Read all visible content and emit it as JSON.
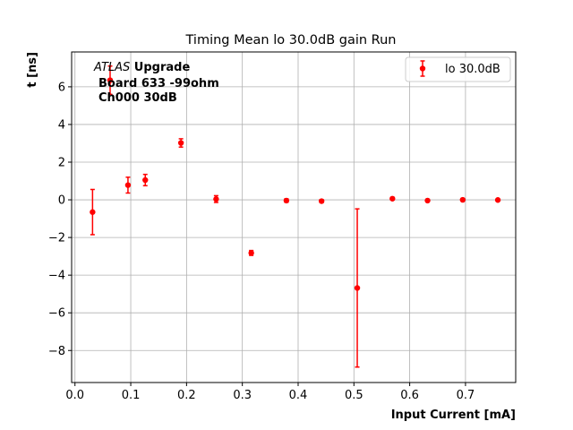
{
  "chart_data": {
    "type": "scatter",
    "title": "Timing Mean lo 30.0dB gain Run",
    "xlabel": "Input Current [mA]",
    "ylabel": "t [ns]",
    "xlim": [
      -0.006,
      0.79
    ],
    "ylim": [
      -9.7,
      7.85
    ],
    "xticks": [
      0.0,
      0.1,
      0.2,
      0.3,
      0.4,
      0.5,
      0.6,
      0.7
    ],
    "xtick_labels": [
      "0.0",
      "0.1",
      "0.2",
      "0.3",
      "0.4",
      "0.5",
      "0.6",
      "0.7"
    ],
    "yticks": [
      -8,
      -6,
      -4,
      -2,
      0,
      2,
      4,
      6
    ],
    "ytick_labels": [
      "−8",
      "−6",
      "−4",
      "−2",
      "0",
      "2",
      "4",
      "6"
    ],
    "grid": true,
    "legend_position": "top-right",
    "annotation": {
      "line1_italic": "ATLAS",
      "line1_bold": " Upgrade",
      "line2": "Board 633 -99ohm",
      "line3": "Ch000 30dB"
    },
    "series": [
      {
        "name": "lo 30.0dB",
        "color": "#ff0000",
        "marker": "circle",
        "x": [
          0.0315,
          0.063,
          0.095,
          0.126,
          0.19,
          0.253,
          0.316,
          0.379,
          0.442,
          0.506,
          0.569,
          0.632,
          0.695,
          0.758
        ],
        "y": [
          -0.65,
          6.35,
          0.78,
          1.05,
          3.02,
          0.04,
          -2.82,
          -0.04,
          -0.07,
          -4.68,
          0.06,
          -0.04,
          0.0,
          -0.01
        ],
        "err": [
          1.2,
          0.75,
          0.42,
          0.3,
          0.22,
          0.18,
          0.13,
          0.09,
          0.08,
          4.2,
          0.07,
          0.06,
          0.05,
          0.05
        ]
      }
    ]
  }
}
